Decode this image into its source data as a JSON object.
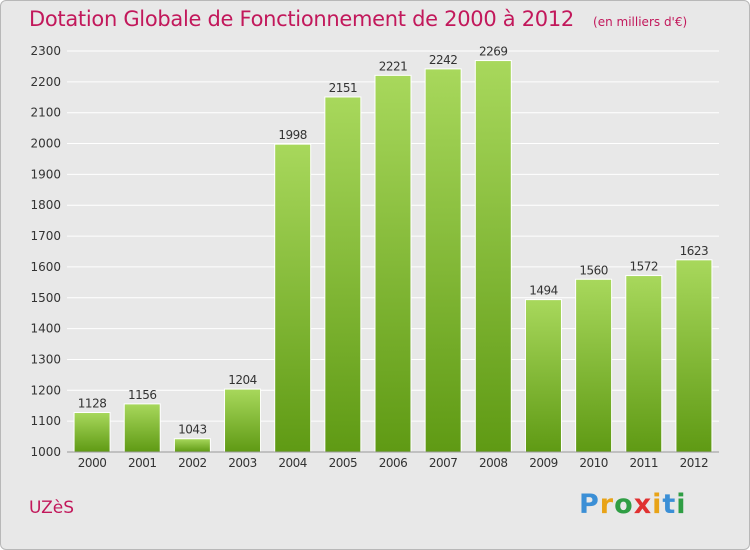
{
  "header": {
    "title": "Dotation Globale de Fonctionnement de 2000 à 2012",
    "unit_note": "(en milliers d'€)"
  },
  "footer": {
    "commune": "UZèS",
    "logo_text": "Proxiti"
  },
  "colors": {
    "title": "#c2185b",
    "bar_top": "#a8d85c",
    "bar_bottom": "#5f9a14",
    "plot_bg": "#e8e8e8",
    "grid": "#ffffff"
  },
  "chart_data": {
    "type": "bar",
    "title": "Dotation Globale de Fonctionnement de 2000 à 2012",
    "subtitle": "(en milliers d'€)",
    "xlabel": "",
    "ylabel": "",
    "categories": [
      "2000",
      "2001",
      "2002",
      "2003",
      "2004",
      "2005",
      "2006",
      "2007",
      "2008",
      "2009",
      "2010",
      "2011",
      "2012"
    ],
    "values": [
      1128,
      1156,
      1043,
      1204,
      1998,
      2151,
      2221,
      2242,
      2269,
      1494,
      1560,
      1572,
      1623
    ],
    "ylim": [
      1000,
      2300
    ],
    "yticks": [
      1000,
      1100,
      1200,
      1300,
      1400,
      1500,
      1600,
      1700,
      1800,
      1900,
      2000,
      2100,
      2200,
      2300
    ],
    "grid": true,
    "legend": "none"
  }
}
